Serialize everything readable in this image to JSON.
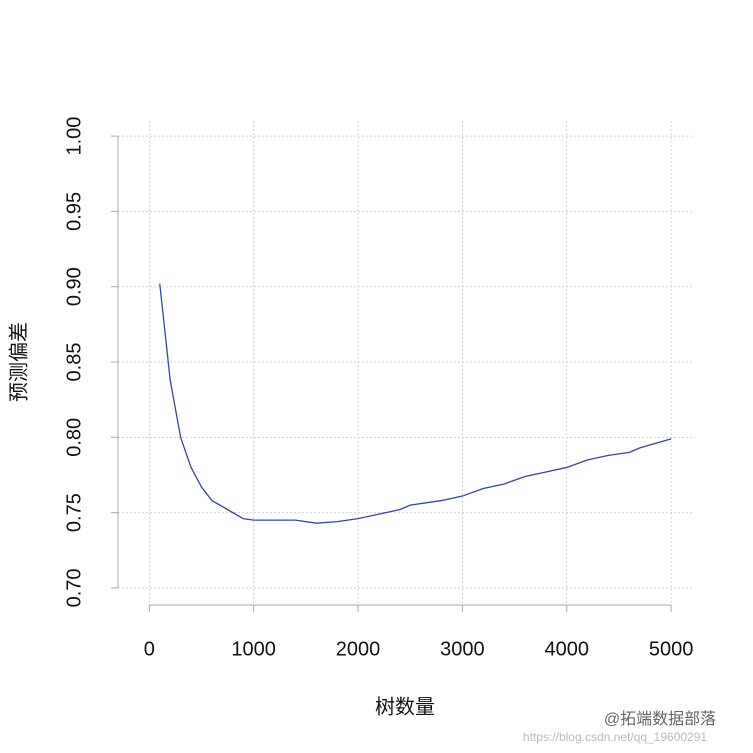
{
  "chart_data": {
    "type": "line",
    "x_label": "树数量",
    "y_label": "预测偏差",
    "x": [
      100,
      200,
      300,
      400,
      500,
      600,
      700,
      800,
      900,
      1000,
      1200,
      1400,
      1600,
      1800,
      2000,
      2200,
      2400,
      2500,
      2800,
      3000,
      3200,
      3400,
      3600,
      3800,
      4000,
      4200,
      4400,
      4600,
      4700,
      4800,
      5000
    ],
    "series": [
      {
        "color": "#2d4a9c",
        "values": [
          0.902,
          0.838,
          0.8,
          0.78,
          0.767,
          0.758,
          0.754,
          0.75,
          0.746,
          0.745,
          0.745,
          0.745,
          0.743,
          0.744,
          0.746,
          0.749,
          0.752,
          0.755,
          0.758,
          0.761,
          0.766,
          0.769,
          0.774,
          0.777,
          0.78,
          0.785,
          0.788,
          0.79,
          0.793,
          0.795,
          0.799
        ]
      }
    ],
    "xlim": [
      -300,
      5200
    ],
    "ylim": [
      0.69,
      1.01
    ],
    "xticks": [
      0,
      1000,
      2000,
      3000,
      4000,
      5000
    ],
    "yticks": [
      {
        "value": 0.7,
        "label": "0.70"
      },
      {
        "value": 0.75,
        "label": "0.75"
      },
      {
        "value": 0.8,
        "label": "0.80"
      },
      {
        "value": 0.85,
        "label": "0.85"
      },
      {
        "value": 0.9,
        "label": "0.90"
      },
      {
        "value": 0.95,
        "label": "0.95"
      },
      {
        "value": 1.0,
        "label": "1.00"
      }
    ],
    "grid": true,
    "annotations": [
      "@拓端数据部落",
      "https://blog.csdn.net/qq_19600291"
    ]
  }
}
